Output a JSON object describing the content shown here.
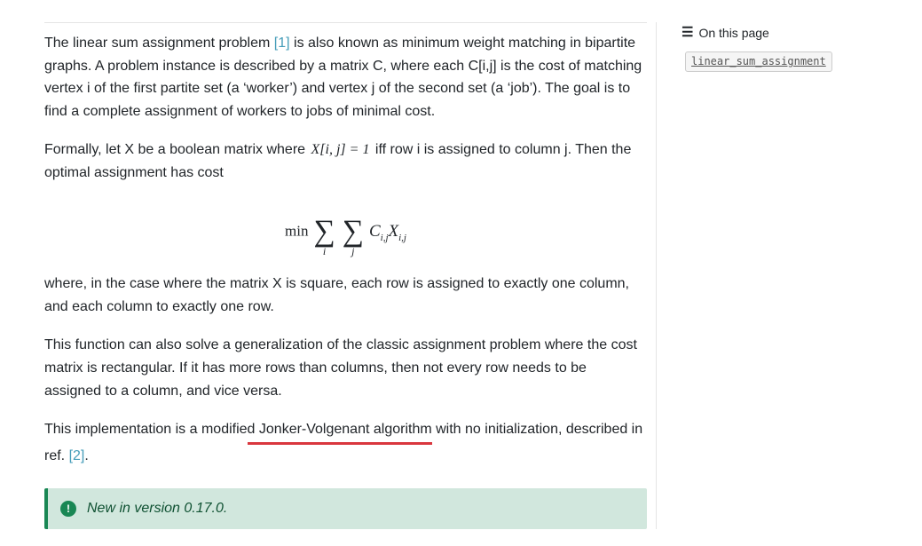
{
  "content": {
    "p1_a": "The linear sum assignment problem ",
    "ref1": "[1]",
    "p1_b": " is also known as minimum weight matching in bipartite graphs. A problem instance is described by a matrix C, where each C[i,j] is the cost of matching vertex i of the first partite set (a ‘worker’) and vertex j of the second set (a ‘job’). The goal is to find a complete assignment of workers to jobs of minimal cost.",
    "p2_a": "Formally, let X be a boolean matrix where ",
    "p2_math": "X[i, j] = 1",
    "p2_b": " iff row i is assigned to column j. Then the optimal assignment has cost",
    "formula": {
      "min": "min",
      "sigma": "∑",
      "idx_i": "i",
      "idx_j": "j",
      "C": "C",
      "X": "X",
      "sub_ij": "i,j"
    },
    "p3": "where, in the case where the matrix X is square, each row is assigned to exactly one column, and each column to exactly one row.",
    "p4": "This function can also solve a generalization of the classic assignment problem where the cost matrix is rectangular. If it has more rows than columns, then not every row needs to be assigned to a column, and vice versa.",
    "p5_a": "This implementation is a modifie",
    "p5_mark": "d Jonker-Volgenant algorithm",
    "p5_b": " with no initialization, described in ref. ",
    "ref2": "[2]",
    "p5_c": ".",
    "version_note": "New in version 0.17.0."
  },
  "sidebar": {
    "heading": "On this page",
    "toc_item": "linear_sum_assignment"
  },
  "colors": {
    "link": "#459db9",
    "underline": "#d9363e",
    "admonition_bg": "#d1e7dd",
    "admonition_border": "#198754",
    "admonition_text": "#0f5132",
    "code_bg": "#f5f5f5",
    "code_border": "#cccccc",
    "divider": "#e5e5e5",
    "body_text": "#212529"
  }
}
